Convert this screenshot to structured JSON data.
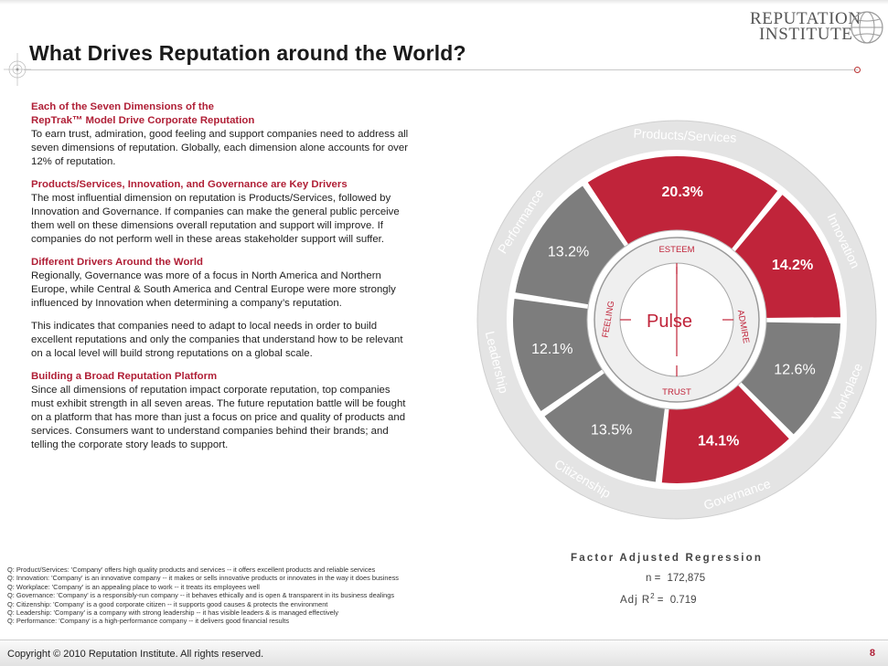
{
  "title": "What Drives Reputation around the World?",
  "logo": {
    "line1": "REPUTATION",
    "line2": "INSTITUTE"
  },
  "sections": [
    {
      "heading": "Each of the Seven Dimensions of the\nRepTrak™ Model Drive Corporate Reputation",
      "body": "To earn trust, admiration, good feeling and support companies need to address all seven dimensions of reputation. Globally, each dimension alone accounts for over 12% of reputation."
    },
    {
      "heading": "Products/Services, Innovation, and Governance are Key Drivers",
      "body": "The most influential dimension on reputation is Products/Services, followed by Innovation and Governance.  If companies can make the general public perceive them well on these dimensions overall reputation and support will improve. If companies do not perform well in these areas stakeholder support will suffer."
    },
    {
      "heading": "Different Drivers Around the World",
      "body": "Regionally, Governance was more of a focus in North America and Northern Europe, while Central & South America and Central Europe were more strongly influenced by Innovation when determining a company’s reputation."
    },
    {
      "heading": "",
      "body": "This indicates that companies need to adapt to local needs in order to build excellent reputations and only the companies that understand how to be relevant on a local level will build strong reputations on a global scale."
    },
    {
      "heading": "Building a Broad Reputation Platform",
      "body": "Since all dimensions of reputation impact corporate reputation, top companies must exhibit strength in all seven areas. The future reputation battle will be fought on a platform that has more than just a focus on price and quality of products and services. Consumers want to understand companies behind their brands; and telling the corporate story leads to support."
    }
  ],
  "chart_data": {
    "type": "pie",
    "segments": [
      {
        "label": "Products/Services",
        "value": 20.3,
        "display": "20.3%",
        "highlight": true
      },
      {
        "label": "Innovation",
        "value": 14.2,
        "display": "14.2%",
        "highlight": true
      },
      {
        "label": "Workplace",
        "value": 12.6,
        "display": "12.6%",
        "highlight": false
      },
      {
        "label": "Governance",
        "value": 14.1,
        "display": "14.1%",
        "highlight": true
      },
      {
        "label": "Citizenship",
        "value": 13.5,
        "display": "13.5%",
        "highlight": false
      },
      {
        "label": "Leadership",
        "value": 12.1,
        "display": "12.1%",
        "highlight": false
      },
      {
        "label": "Performance",
        "value": 13.2,
        "display": "13.2%",
        "highlight": false
      }
    ],
    "center": {
      "label": "Pulse",
      "ring_words": [
        "ESTEEM",
        "ADMIRE",
        "TRUST",
        "FEELING"
      ]
    },
    "colors": {
      "highlight": "#c0243a",
      "neutral": "#7d7d7d",
      "ring": "#e4e4e4",
      "center": "#ffffff"
    }
  },
  "footnotes": [
    "Q: Product/Services: 'Company' offers high quality products and services -- it offers excellent products and reliable services",
    "Q: Innovation: 'Company'  is an innovative company -- it makes or sells innovative products or innovates in the way it does business",
    "Q: Workplace: 'Company'  is an appealing place to work -- it treats its employees well",
    "Q: Governance: 'Company'  is a responsibly-run company -- it behaves ethically and is open & transparent in its business dealings",
    "Q: Citizenship: 'Company'  is a good corporate citizen -- it supports good causes & protects the environment",
    "Q: Leadership: 'Company'  is a company with strong leadership -- it has visible leaders & is managed effectively",
    "Q: Performance: 'Company'  is a high-performance company -- it delivers good financial results"
  ],
  "regression": {
    "title": "Factor Adjusted Regression",
    "n_label": "n =",
    "n_value": "172,875",
    "r2_label": "Adj R",
    "r2_sup": "2",
    "r2_eq": " =",
    "r2_value": "0.719"
  },
  "footer": {
    "copyright": "Copyright © 2010 Reputation Institute. All rights reserved.",
    "page_number": "8"
  }
}
